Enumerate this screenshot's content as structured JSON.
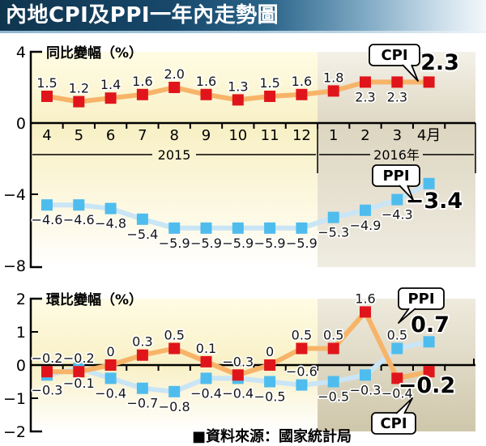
{
  "title": "內地CPI及PPI一年內走勢圖",
  "source_note": "■資料來源：國家統計局",
  "colors": {
    "cpi_point": "#E0151B",
    "cpi_line": "#F7B469",
    "cpi_accent": "#E0151B",
    "ppi_point": "#4FBCEE",
    "ppi_line": "#C9E5F6",
    "ppi_accent": "#1FA0DC"
  },
  "chart_data": [
    {
      "type": "line",
      "title": "同比變幅（%）",
      "categories": [
        "4",
        "5",
        "6",
        "7",
        "8",
        "9",
        "10",
        "11",
        "12",
        "1",
        "2",
        "3",
        "4月"
      ],
      "year_labels": [
        "2015",
        "2016年"
      ],
      "boundary_index": 9,
      "ylim": [
        -8,
        4
      ],
      "yticks": [
        "4",
        "0",
        "−4",
        "−8"
      ],
      "ytick_values": [
        4,
        0,
        -4,
        -8
      ],
      "grid": "off",
      "series": [
        {
          "name": "CPI",
          "values": [
            1.5,
            1.2,
            1.4,
            1.6,
            2.0,
            1.6,
            1.3,
            1.5,
            1.6,
            1.8,
            2.3,
            2.3,
            2.3
          ],
          "labels": [
            "1.5",
            "1.2",
            "1.4",
            "1.6",
            "2.0",
            "1.6",
            "1.3",
            "1.5",
            "1.6",
            "1.8",
            "2.3",
            "2.3",
            "2.3"
          ],
          "label_pos": [
            "a",
            "a",
            "a",
            "a",
            "a",
            "a",
            "a",
            "a",
            "a",
            "a",
            "b",
            "b",
            "big"
          ]
        },
        {
          "name": "PPI",
          "values": [
            -4.6,
            -4.6,
            -4.8,
            -5.4,
            -5.9,
            -5.9,
            -5.9,
            -5.9,
            -5.9,
            -5.3,
            -4.9,
            -4.3,
            -3.4
          ],
          "labels": [
            "−4.6",
            "−4.6",
            "−4.8",
            "−5.4",
            "−5.9",
            "−5.9",
            "−5.9",
            "−5.9",
            "−5.9",
            "−5.3",
            "−4.9",
            "−4.3",
            "−3.4"
          ],
          "label_pos": [
            "b",
            "b",
            "b",
            "b",
            "b",
            "b",
            "b",
            "b",
            "b",
            "b",
            "b",
            "b",
            "big"
          ]
        }
      ]
    },
    {
      "type": "line",
      "title": "環比變幅（%）",
      "x_labels_shown": false,
      "boundary_index": 9,
      "ylim": [
        -2,
        2
      ],
      "yticks": [
        "2",
        "1",
        "0",
        "−1",
        "−2"
      ],
      "ytick_values": [
        2,
        1,
        0,
        -1,
        -2
      ],
      "grid": "off",
      "series": [
        {
          "name": "CPI",
          "values": [
            -0.2,
            -0.2,
            0,
            0.3,
            0.5,
            0.1,
            -0.3,
            0,
            0.5,
            0.5,
            1.6,
            -0.4,
            -0.2
          ],
          "labels": [
            "−0.2",
            "−0.2",
            "0",
            "0.3",
            "0.5",
            "0.1",
            "−0.3",
            "0",
            "0.5",
            "0.5",
            "1.6",
            "−0.4",
            "−0.2"
          ],
          "label_pos": [
            "a",
            "a",
            "a",
            "a",
            "a",
            "a",
            "a",
            "a",
            "a",
            "a",
            "a",
            "b",
            "big"
          ]
        },
        {
          "name": "PPI",
          "values": [
            -0.3,
            -0.1,
            -0.4,
            -0.7,
            -0.8,
            -0.4,
            -0.4,
            -0.5,
            -0.6,
            -0.5,
            -0.3,
            0.5,
            0.7
          ],
          "labels": [
            "−0.3",
            "−0.1",
            "−0.4",
            "−0.7",
            "−0.8",
            "−0.4",
            "−0.4",
            "−0.5",
            "−0.6",
            "−0.5",
            "−0.3",
            "0.5",
            "0.7"
          ],
          "label_pos": [
            "b",
            "b",
            "b",
            "b",
            "b",
            "b",
            "b",
            "b",
            "a",
            "b",
            "b",
            "a",
            "big"
          ]
        }
      ]
    }
  ]
}
